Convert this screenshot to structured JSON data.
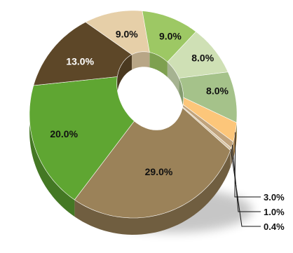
{
  "chart_data": {
    "type": "pie",
    "donut": true,
    "three_d": true,
    "title": "",
    "slices": [
      {
        "label": "9.0%",
        "value": 9.0,
        "color": "#9dc864"
      },
      {
        "label": "8.0%",
        "value": 8.0,
        "color": "#cfe0b5"
      },
      {
        "label": "8.0%",
        "value": 8.0,
        "color": "#a5c28a"
      },
      {
        "label": "3.0%",
        "value": 3.0,
        "color": "#fcc67a"
      },
      {
        "label": "1.0%",
        "value": 1.0,
        "color": "#c0a37c"
      },
      {
        "label": "0.4%",
        "value": 0.4,
        "color": "#d9c5a4"
      },
      {
        "label": "29.0%",
        "value": 29.0,
        "color": "#9b8259"
      },
      {
        "label": "20.0%",
        "value": 20.0,
        "color": "#5fa632"
      },
      {
        "label": "13.0%",
        "value": 13.0,
        "color": "#5d4728"
      },
      {
        "label": "9.0%",
        "value": 9.0,
        "color": "#e6cfa8"
      }
    ]
  }
}
